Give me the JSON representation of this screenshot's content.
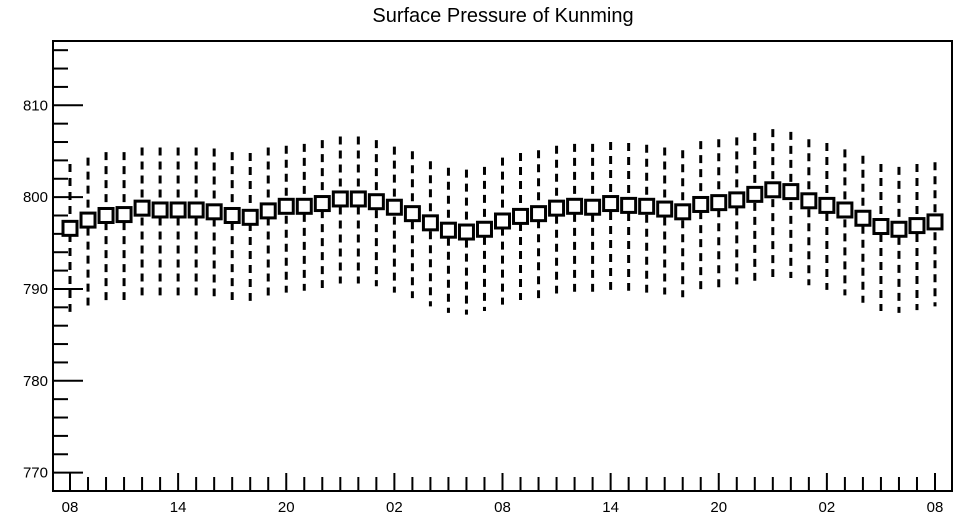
{
  "chart_data": {
    "type": "box",
    "title": "Surface Pressure of Kunming",
    "xlabel": "",
    "ylabel": "",
    "ylim": [
      768,
      817
    ],
    "y_ticks": [
      770,
      780,
      790,
      800,
      810
    ],
    "x_tick_labels": [
      "08",
      "14",
      "20",
      "02",
      "08",
      "14",
      "20",
      "02",
      "08"
    ],
    "n_points": 49,
    "grid": false,
    "series": [
      {
        "center": [
          796.6,
          797.5,
          798.0,
          798.1,
          798.8,
          798.6,
          798.6,
          798.6,
          798.4,
          798.0,
          797.8,
          798.5,
          799.0,
          799.0,
          799.3,
          799.8,
          799.8,
          799.5,
          798.9,
          798.2,
          797.2,
          796.4,
          796.2,
          796.5,
          797.4,
          797.9,
          798.2,
          798.8,
          799.0,
          798.9,
          799.3,
          799.1,
          799.0,
          798.7,
          798.4,
          799.2,
          799.4,
          799.7,
          800.3,
          800.8,
          800.6,
          799.6,
          799.1,
          798.6,
          797.7,
          796.8,
          796.5,
          796.9,
          797.3
        ],
        "low": [
          787.5,
          788.2,
          788.6,
          788.8,
          789.3,
          789.3,
          789.3,
          789.3,
          789.2,
          788.8,
          788.7,
          789.2,
          789.6,
          789.8,
          790.1,
          790.6,
          790.6,
          790.3,
          789.6,
          789.0,
          788.1,
          787.4,
          787.2,
          787.6,
          788.3,
          788.8,
          789.0,
          789.5,
          789.7,
          789.7,
          789.9,
          789.8,
          789.6,
          789.4,
          789.1,
          789.9,
          790.1,
          790.5,
          790.9,
          791.3,
          791.2,
          790.4,
          789.9,
          789.3,
          788.5,
          787.6,
          787.4,
          787.7,
          788.1
        ],
        "high": [
          803.6,
          804.3,
          804.9,
          804.9,
          805.4,
          805.4,
          805.4,
          805.4,
          805.3,
          804.9,
          804.8,
          805.4,
          805.6,
          805.8,
          806.2,
          806.6,
          806.6,
          806.2,
          805.5,
          805.0,
          803.9,
          803.2,
          803.0,
          803.3,
          804.3,
          804.8,
          805.1,
          805.6,
          805.8,
          805.8,
          806.0,
          805.9,
          805.7,
          805.4,
          805.1,
          806.1,
          806.3,
          806.5,
          807.0,
          807.4,
          807.1,
          806.3,
          805.9,
          805.2,
          804.5,
          803.6,
          803.3,
          803.6,
          803.8
        ]
      }
    ]
  }
}
